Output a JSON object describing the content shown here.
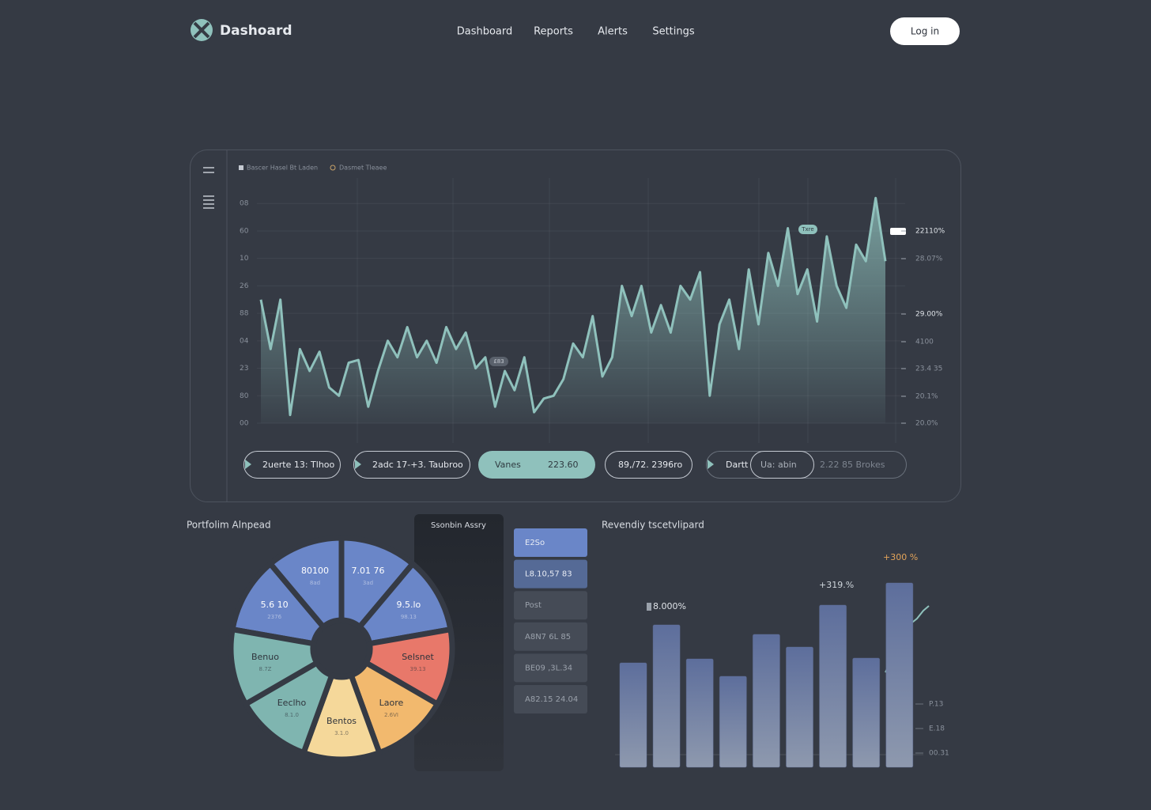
{
  "header": {
    "logo": "Dashoard",
    "nav": [
      "Dashboard",
      "Reports",
      "Alerts",
      "Settings"
    ],
    "login": "Log in"
  },
  "pills": [
    "2uerte 13: Tlhoo",
    "2adc 17-+3. Taubroo",
    "Vanes",
    "223.60",
    "89,/72. 2396ro",
    "Dartt",
    "Ua: abin",
    "2.22 85 Brokes"
  ],
  "assets_list": {
    "title": "Ssonbin Assry",
    "items": [
      "E2So",
      "L8.10,57 83",
      "Post",
      "A8N7 6L 85",
      "BE09 ,3L.34",
      "A82.15 24.04"
    ]
  },
  "chart_data": [
    {
      "type": "area",
      "legend": [
        "Bascer Hasel Bt Laden",
        "Dasmet Tleaee"
      ],
      "color": "#8fc1bc",
      "values": [
        4.5,
        2.7,
        4.5,
        0.3,
        2.7,
        1.9,
        2.6,
        1.3,
        1.0,
        2.2,
        2.3,
        0.6,
        1.9,
        3.0,
        2.4,
        3.5,
        2.4,
        3.0,
        2.2,
        3.5,
        2.7,
        3.3,
        2.0,
        2.4,
        0.6,
        1.9,
        1.2,
        2.4,
        0.4,
        0.9,
        1.0,
        1.6,
        2.9,
        2.4,
        3.9,
        1.7,
        2.4,
        5.0,
        3.9,
        5.0,
        3.3,
        4.3,
        3.3,
        5.0,
        4.5,
        5.5,
        1.0,
        3.6,
        4.5,
        2.7,
        5.6,
        3.6,
        6.2,
        5.0,
        7.1,
        4.7,
        5.6,
        3.7,
        6.8,
        5.0,
        4.2,
        6.5,
        5.9,
        8.2,
        5.9
      ],
      "ylim": [
        0,
        8.9
      ],
      "yticks": [
        {
          "value": 8,
          "label": "08"
        },
        {
          "value": 7,
          "label": "60"
        },
        {
          "value": 6,
          "label": "10"
        },
        {
          "value": 5,
          "label": "26"
        },
        {
          "value": 4,
          "label": "88"
        },
        {
          "value": 3,
          "label": "04"
        },
        {
          "value": 2,
          "label": "23"
        },
        {
          "value": 1,
          "label": "80"
        },
        {
          "value": 0,
          "label": "00"
        }
      ],
      "grid": true,
      "right_labels": [
        "22110%",
        "28.07%",
        "29.00%",
        "4100",
        "23.4 35",
        "20.1%",
        "20.0%"
      ],
      "annotations": [
        "Txre",
        "£83"
      ]
    },
    {
      "type": "pie",
      "title": "Portfolim Alnpead",
      "categories": [
        "5.6 10",
        "80100",
        "7.01 76",
        "9.5.lo",
        "Selsnet",
        "Laore",
        "Bentos",
        "Eeclho",
        "Benuo"
      ],
      "sublabels": [
        "2376",
        "8ad",
        "3ad",
        "98.13",
        "39.13",
        "2.6VI",
        "3.1.0",
        "8.1.0",
        "8.7Z"
      ],
      "values": [
        40,
        40,
        40,
        40,
        40,
        40,
        40,
        40,
        40
      ],
      "colors": [
        "#6a86c8",
        "#6a86c8",
        "#6a86c8",
        "#6a86c8",
        "#e8786a",
        "#f2b96e",
        "#f5d89a",
        "#7fb5b0",
        "#7fb5b0"
      ]
    },
    {
      "type": "bar",
      "title": "Revendiy tscetvlipard",
      "values": [
        132,
        180,
        137,
        115,
        168,
        152,
        205,
        138,
        233
      ],
      "color": "#63739e",
      "ylim": [
        0,
        250
      ],
      "annotations": [
        "8.000%",
        "+319.%",
        "+300 %"
      ],
      "right_labels": [
        "P.13",
        "E.18",
        "00.31"
      ]
    }
  ]
}
